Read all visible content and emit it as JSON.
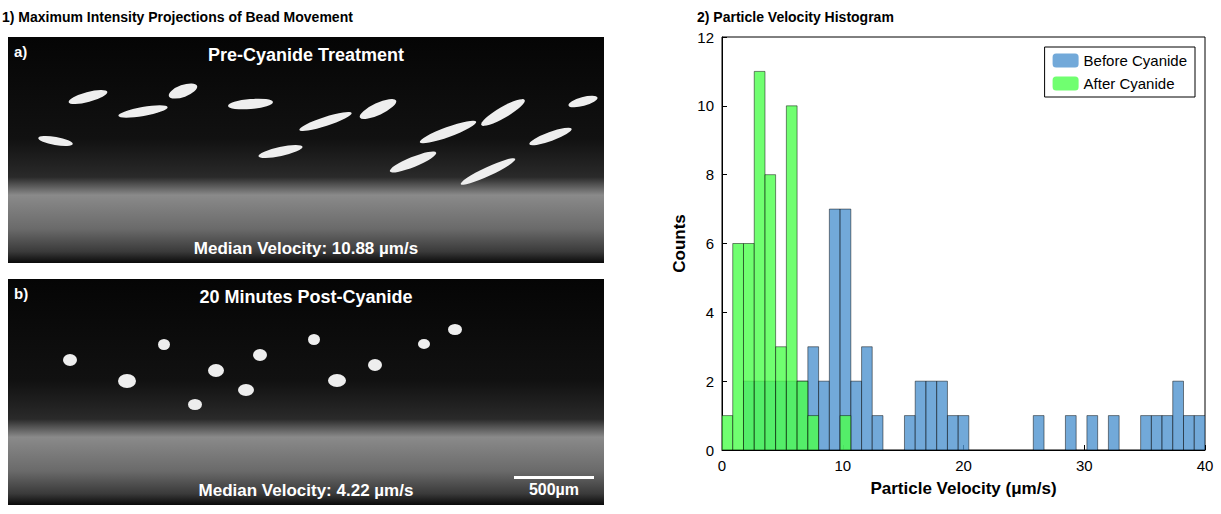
{
  "heading": "1) Maximum Intensity Projections of Bead Movement",
  "images": [
    {
      "letter": "a)",
      "title": "Pre-Cyanide Treatment",
      "caption": "Median Velocity: 10.88 µm/s"
    },
    {
      "letter": "b)",
      "title": "20 Minutes Post-Cyanide",
      "caption": "Median Velocity: 4.22 µm/s",
      "scale_bar": "500µm"
    }
  ],
  "chart_data": {
    "type": "histogram",
    "title": "2) Particle Velocity Histogram",
    "x_label": "Particle Velocity (μm/s)",
    "y_label": "Counts",
    "bins": [
      0,
      0.89,
      1.78,
      2.67,
      3.56,
      4.44,
      5.33,
      6.22,
      7.11,
      8.0,
      8.89,
      9.78,
      10.67,
      11.56,
      12.44,
      13.33,
      14.22,
      15.11,
      16.0,
      16.89,
      17.78,
      18.67,
      19.56,
      20.44,
      21.33,
      22.22,
      23.11,
      24.0,
      24.89,
      25.78,
      26.67,
      27.56,
      28.44,
      29.33,
      30.22,
      31.11,
      32.0,
      32.89,
      33.78,
      34.67,
      35.56,
      36.44,
      37.33,
      38.22,
      39.11,
      40.0
    ],
    "series": [
      {
        "name": "Before Cyanide",
        "color": "#4f94cf",
        "values": [
          0,
          0,
          2,
          2,
          2,
          2,
          2,
          2,
          3,
          2,
          7,
          7,
          2,
          3,
          1,
          0,
          0,
          1,
          2,
          2,
          2,
          1,
          1,
          0,
          0,
          0,
          0,
          0,
          0,
          1,
          0,
          0,
          1,
          0,
          1,
          0,
          1,
          0,
          0,
          1,
          1,
          1,
          2,
          1,
          1
        ]
      },
      {
        "name": "After Cyanide",
        "color": "#4cff4c",
        "values": [
          1,
          6,
          6,
          11,
          8,
          3,
          10,
          2,
          1,
          0,
          0,
          1,
          0,
          0,
          0,
          0,
          0,
          0,
          0,
          0,
          0,
          0,
          0,
          0,
          0,
          0,
          0,
          0,
          0,
          0,
          0,
          0,
          0,
          0,
          0,
          0,
          0,
          0,
          0,
          0,
          0,
          0,
          0,
          0,
          0
        ]
      }
    ],
    "xlim": [
      0,
      40
    ],
    "ylim": [
      0,
      12
    ],
    "xticks": [
      0,
      10,
      20,
      30,
      40
    ],
    "yticks": [
      0,
      2,
      4,
      6,
      8,
      10,
      12
    ],
    "legend": "upper right",
    "grid": false
  }
}
